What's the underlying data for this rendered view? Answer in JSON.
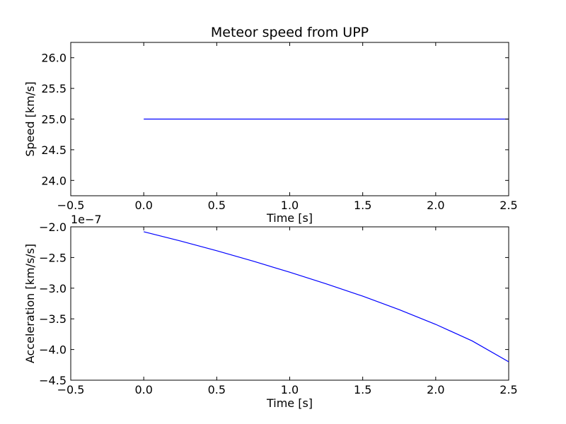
{
  "figure": {
    "background": "#ffffff",
    "series_color": "#0000ff"
  },
  "chart_data": [
    {
      "type": "line",
      "title": "Meteor speed from  UPP",
      "xlabel": "Time [s]",
      "ylabel": "Speed [km/s]",
      "xlim": [
        -0.5,
        2.5
      ],
      "ylim": [
        23.75,
        26.25
      ],
      "xticks": [
        -0.5,
        0.0,
        0.5,
        1.0,
        1.5,
        2.0,
        2.5
      ],
      "xtick_labels": [
        "−0.5",
        "0.0",
        "0.5",
        "1.0",
        "1.5",
        "2.0",
        "2.5"
      ],
      "yticks": [
        24.0,
        24.5,
        25.0,
        25.5,
        26.0
      ],
      "ytick_labels": [
        "24.0",
        "24.5",
        "25.0",
        "25.5",
        "26.0"
      ],
      "offset_text": "",
      "grid": false,
      "series": [
        {
          "x": [
            0.0,
            0.5,
            1.0,
            1.5,
            2.0,
            2.5
          ],
          "y": [
            25.0,
            25.0,
            25.0,
            25.0,
            25.0,
            25.0
          ]
        }
      ]
    },
    {
      "type": "line",
      "title": "",
      "xlabel": "Time [s]",
      "ylabel": "Acceleration [km/s/s]",
      "xlim": [
        -0.5,
        2.5
      ],
      "ylim": [
        -4.5,
        -2.0
      ],
      "xticks": [
        -0.5,
        0.0,
        0.5,
        1.0,
        1.5,
        2.0,
        2.5
      ],
      "xtick_labels": [
        "−0.5",
        "0.0",
        "0.5",
        "1.0",
        "1.5",
        "2.0",
        "2.5"
      ],
      "yticks": [
        -4.5,
        -4.0,
        -3.5,
        -3.0,
        -2.5,
        -2.0
      ],
      "ytick_labels": [
        "−4.5",
        "−4.0",
        "−3.5",
        "−3.0",
        "−2.5",
        "−2.0"
      ],
      "offset_text": "1e−7",
      "grid": false,
      "series": [
        {
          "x": [
            0.0,
            0.25,
            0.5,
            0.75,
            1.0,
            1.25,
            1.5,
            1.75,
            2.0,
            2.25,
            2.5
          ],
          "y": [
            -2.08,
            -2.23,
            -2.39,
            -2.56,
            -2.74,
            -2.93,
            -3.13,
            -3.35,
            -3.59,
            -3.86,
            -4.2
          ]
        }
      ]
    }
  ]
}
